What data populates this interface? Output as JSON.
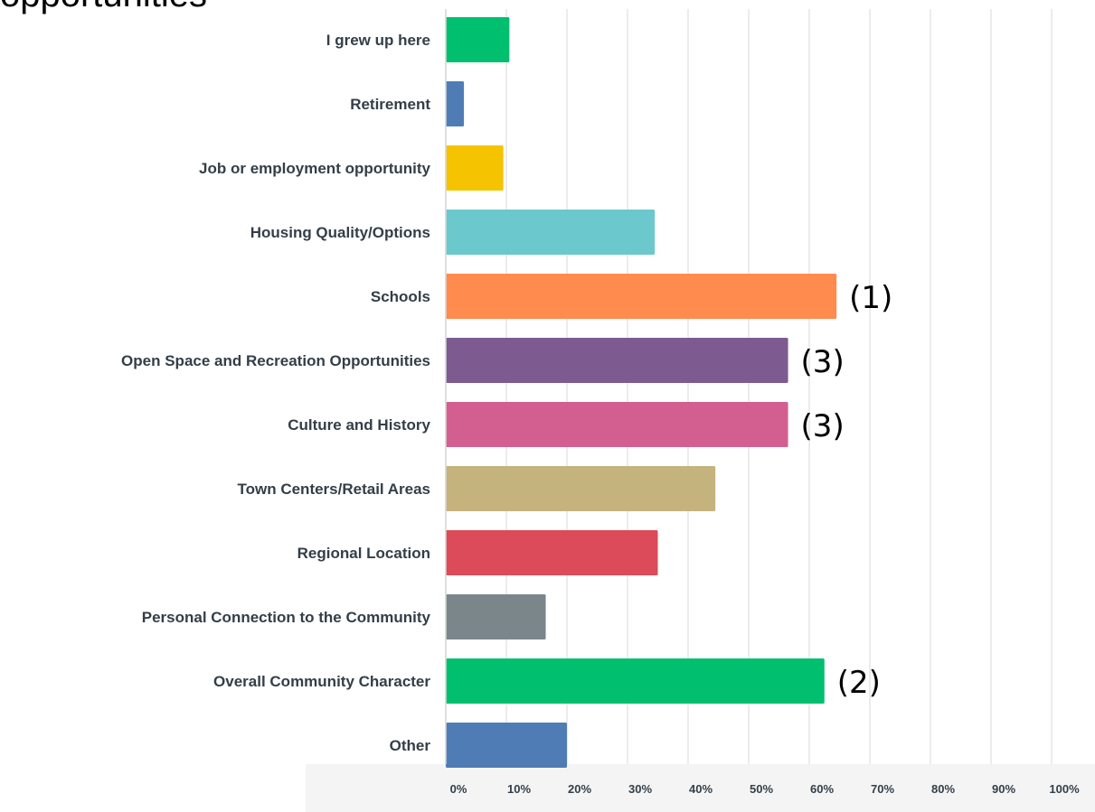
{
  "title_fragment": "opportunities",
  "chart_data": {
    "type": "bar",
    "orientation": "horizontal",
    "categories": [
      "I grew up here",
      "Retirement",
      "Job or employment opportunity",
      "Housing Quality/Options",
      "Schools",
      "Open Space and Recreation Opportunities",
      "Culture and History",
      "Town Centers/Retail Areas",
      "Regional Location",
      "Personal Connection to the Community",
      "Overall Community Character",
      "Other"
    ],
    "values": [
      10.5,
      3,
      9.5,
      34.5,
      64.5,
      56.5,
      56.5,
      44.5,
      35,
      16.5,
      62.5,
      20
    ],
    "colors": [
      "#00bf6f",
      "#507cb6",
      "#f5c300",
      "#6bc8cd",
      "#ff8b4f",
      "#7d5a8f",
      "#d25f90",
      "#c4b37c",
      "#dc4b59",
      "#7b868b",
      "#00bf6f",
      "#507cb6"
    ],
    "annotations": [
      "",
      "",
      "",
      "",
      "(1)",
      "(3)",
      "(3)",
      "",
      "",
      "",
      "(2)",
      ""
    ],
    "xlim": [
      0,
      100
    ],
    "xticks": [
      "0%",
      "10%",
      "20%",
      "30%",
      "40%",
      "50%",
      "60%",
      "70%",
      "80%",
      "90%",
      "100%"
    ],
    "grid": true,
    "gridline_color": "#e6e6e6"
  }
}
